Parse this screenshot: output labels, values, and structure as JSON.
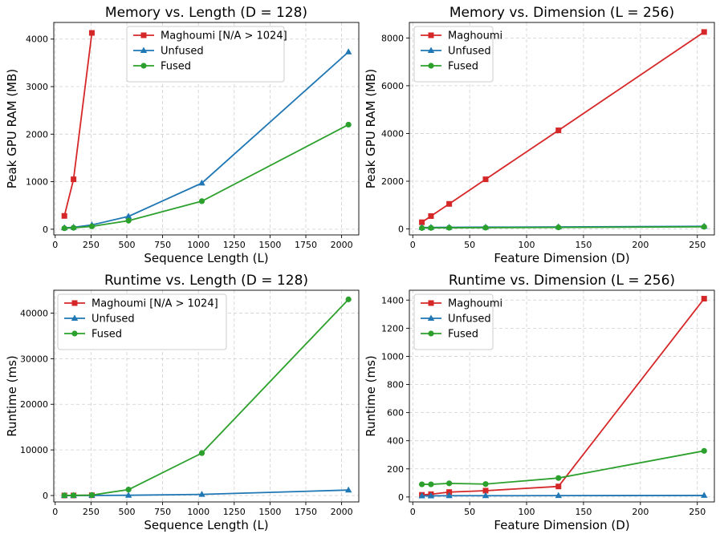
{
  "chart_data": [
    {
      "type": "line",
      "title": "Memory vs. Length  (D = 128)",
      "xlabel": "Sequence Length (L)",
      "ylabel": "Peak GPU RAM (MB)",
      "xlim": [
        -10,
        2120
      ],
      "ylim": [
        -120,
        4350
      ],
      "xticks": [
        0,
        250,
        500,
        750,
        1000,
        1250,
        1500,
        1750,
        2000
      ],
      "yticks": [
        0,
        1000,
        2000,
        3000,
        4000
      ],
      "legend_loc": "top-center",
      "series": [
        {
          "name": "Maghoumi [N/A > 1024]",
          "color": "#d62728",
          "marker": "square",
          "x": [
            64,
            128,
            256
          ],
          "y": [
            280,
            1050,
            4130
          ]
        },
        {
          "name": "Unfused",
          "color": "#1f77b4",
          "marker": "triangle",
          "x": [
            64,
            128,
            256,
            512,
            1024,
            2048
          ],
          "y": [
            30,
            40,
            90,
            270,
            970,
            3730
          ]
        },
        {
          "name": "Fused",
          "color": "#2ca02c",
          "marker": "circle",
          "x": [
            64,
            128,
            256,
            512,
            1024,
            2048
          ],
          "y": [
            20,
            30,
            60,
            180,
            590,
            2200
          ]
        }
      ]
    },
    {
      "type": "line",
      "title": "Memory vs. Dimension  (L = 256)",
      "xlabel": "Feature Dimension (D)",
      "ylabel": "Peak GPU RAM (MB)",
      "xlim": [
        -3,
        265
      ],
      "ylim": [
        -250,
        8650
      ],
      "xticks": [
        0,
        50,
        100,
        150,
        200,
        250
      ],
      "yticks": [
        0,
        2000,
        4000,
        6000,
        8000
      ],
      "legend_loc": "top-left",
      "series": [
        {
          "name": "Maghoumi",
          "color": "#d62728",
          "marker": "square",
          "x": [
            8,
            16,
            32,
            64,
            128,
            256
          ],
          "y": [
            280,
            540,
            1050,
            2080,
            4130,
            8250
          ]
        },
        {
          "name": "Unfused",
          "color": "#1f77b4",
          "marker": "triangle",
          "x": [
            8,
            16,
            32,
            64,
            128,
            256
          ],
          "y": [
            60,
            65,
            70,
            75,
            85,
            110
          ]
        },
        {
          "name": "Fused",
          "color": "#2ca02c",
          "marker": "circle",
          "x": [
            8,
            16,
            32,
            64,
            128,
            256
          ],
          "y": [
            40,
            45,
            50,
            55,
            65,
            90
          ]
        }
      ]
    },
    {
      "type": "line",
      "title": "Runtime vs. Length  (D = 128)",
      "xlabel": "Sequence Length (L)",
      "ylabel": "Runtime (ms)",
      "xlim": [
        -10,
        2120
      ],
      "ylim": [
        -1400,
        45000
      ],
      "xticks": [
        0,
        250,
        500,
        750,
        1000,
        1250,
        1500,
        1750,
        2000
      ],
      "yticks": [
        0,
        10000,
        20000,
        30000,
        40000
      ],
      "legend_loc": "top-left",
      "series": [
        {
          "name": "Maghoumi [N/A > 1024]",
          "color": "#d62728",
          "marker": "square",
          "x": [
            64,
            128,
            256
          ],
          "y": [
            10,
            20,
            60
          ]
        },
        {
          "name": "Unfused",
          "color": "#1f77b4",
          "marker": "triangle",
          "x": [
            64,
            128,
            256,
            512,
            1024,
            2048
          ],
          "y": [
            5,
            10,
            20,
            60,
            250,
            1200
          ]
        },
        {
          "name": "Fused",
          "color": "#2ca02c",
          "marker": "circle",
          "x": [
            64,
            128,
            256,
            512,
            1024,
            2048
          ],
          "y": [
            20,
            40,
            100,
            1300,
            9300,
            43000
          ]
        }
      ]
    },
    {
      "type": "line",
      "title": "Runtime vs. Dimension  (L = 256)",
      "xlabel": "Feature Dimension (D)",
      "ylabel": "Runtime (ms)",
      "xlim": [
        -3,
        265
      ],
      "ylim": [
        -35,
        1470
      ],
      "xticks": [
        0,
        50,
        100,
        150,
        200,
        250
      ],
      "yticks": [
        0,
        200,
        400,
        600,
        800,
        1000,
        1200,
        1400
      ],
      "legend_loc": "top-left",
      "series": [
        {
          "name": "Maghoumi",
          "color": "#d62728",
          "marker": "square",
          "x": [
            8,
            16,
            32,
            64,
            128,
            256
          ],
          "y": [
            15,
            20,
            35,
            45,
            75,
            1410
          ]
        },
        {
          "name": "Unfused",
          "color": "#1f77b4",
          "marker": "triangle",
          "x": [
            8,
            16,
            32,
            64,
            128,
            256
          ],
          "y": [
            8,
            8,
            9,
            9,
            10,
            11
          ]
        },
        {
          "name": "Fused",
          "color": "#2ca02c",
          "marker": "circle",
          "x": [
            8,
            16,
            32,
            64,
            128,
            256
          ],
          "y": [
            90,
            90,
            97,
            92,
            135,
            328
          ]
        }
      ]
    }
  ]
}
